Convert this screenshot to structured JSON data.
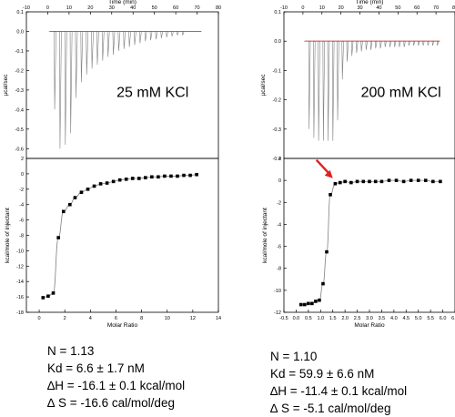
{
  "chart_data": [
    {
      "type": "line",
      "panel": "thermogram",
      "xlabel": "Time (min)",
      "ylabel": "µcal/sec",
      "annotation": "25 mM KCl",
      "xlim": [
        -10,
        80
      ],
      "ylim": [
        -0.65,
        0.1
      ],
      "x_ticks": [
        -10,
        0,
        10,
        20,
        30,
        40,
        50,
        60,
        70,
        80
      ],
      "y_ticks": [
        0.1,
        0.0,
        -0.1,
        -0.2,
        -0.3,
        -0.4,
        -0.5,
        -0.6
      ],
      "baseline_color": "#cc0000",
      "trace_color": "#808080",
      "injection_times": [
        3.0,
        5.5,
        8.0,
        10.5,
        13.0,
        15.5,
        18.0,
        20.5,
        23.0,
        25.5,
        28.0,
        30.5,
        33.0,
        35.5,
        38.0,
        40.5,
        43.0,
        45.5,
        48.0,
        50.5,
        53.0,
        55.5,
        58.0,
        60.5,
        63.0
      ],
      "peak_values": [
        -0.4,
        -0.6,
        -0.58,
        -0.52,
        -0.34,
        -0.26,
        -0.22,
        -0.19,
        -0.17,
        -0.15,
        -0.13,
        -0.12,
        -0.1,
        -0.09,
        -0.08,
        -0.07,
        -0.06,
        -0.05,
        -0.045,
        -0.04,
        -0.035,
        -0.03,
        -0.025,
        -0.02,
        -0.02
      ]
    },
    {
      "type": "scatter",
      "panel": "binding-isotherm",
      "xlabel": "Molar Ratio",
      "ylabel": "kcal/mole of injectant",
      "xlim": [
        -1,
        14
      ],
      "ylim": [
        -18,
        2
      ],
      "x_ticks": [
        0,
        2,
        4,
        6,
        8,
        10,
        12,
        14
      ],
      "y_ticks": [
        2,
        0,
        -2,
        -4,
        -6,
        -8,
        -10,
        -12,
        -14,
        -16,
        -18
      ],
      "marker_color": "#000000",
      "fit_color": "#808080",
      "x": [
        0.3,
        0.7,
        1.1,
        1.5,
        1.9,
        2.4,
        2.8,
        3.3,
        3.8,
        4.3,
        4.8,
        5.3,
        5.8,
        6.3,
        6.8,
        7.3,
        7.8,
        8.3,
        8.8,
        9.3,
        9.8,
        10.3,
        10.8,
        11.3,
        11.8,
        12.3
      ],
      "y": [
        -16.1,
        -15.9,
        -15.5,
        -8.3,
        -4.9,
        -4.0,
        -3.1,
        -2.4,
        -2.0,
        -1.6,
        -1.3,
        -1.2,
        -1.0,
        -0.8,
        -0.7,
        -0.6,
        -0.6,
        -0.5,
        -0.4,
        -0.4,
        -0.3,
        -0.3,
        -0.3,
        -0.2,
        -0.2,
        -0.1
      ]
    },
    {
      "type": "line",
      "panel": "thermogram",
      "xlabel": "Time (min)",
      "ylabel": "µcal/sec",
      "annotation": "200 mM KCl",
      "xlim": [
        -10,
        80
      ],
      "ylim": [
        -0.4,
        0.1
      ],
      "x_ticks": [
        -10,
        0,
        10,
        20,
        30,
        40,
        50,
        60,
        70,
        80
      ],
      "y_ticks": [
        0.1,
        0.0,
        -0.1,
        -0.2,
        -0.3,
        -0.4
      ],
      "baseline_color": "#cc0000",
      "trace_color": "#808080",
      "injection_times": [
        3.0,
        5.5,
        8.0,
        10.5,
        13.0,
        15.5,
        18.0,
        20.5,
        23.0,
        25.5,
        28.0,
        30.5,
        33.0,
        35.5,
        38.0,
        40.5,
        43.0,
        45.5,
        48.0,
        50.5,
        53.0,
        55.5,
        58.0,
        60.5,
        63.0,
        65.5,
        68.0,
        70.5
      ],
      "peak_values": [
        -0.3,
        -0.33,
        -0.34,
        -0.34,
        -0.34,
        -0.34,
        -0.27,
        -0.13,
        -0.07,
        -0.05,
        -0.04,
        -0.035,
        -0.03,
        -0.03,
        -0.025,
        -0.025,
        -0.02,
        -0.02,
        -0.02,
        -0.02,
        -0.02,
        -0.015,
        -0.015,
        -0.015,
        -0.015,
        -0.015,
        -0.015,
        -0.015
      ]
    },
    {
      "type": "scatter",
      "panel": "binding-isotherm",
      "xlabel": "Molar Ratio",
      "ylabel": "kcal/mole of injectant",
      "xlim": [
        -0.5,
        6.5
      ],
      "ylim": [
        -12,
        2
      ],
      "x_ticks": [
        -0.5,
        0.0,
        0.5,
        1.0,
        1.5,
        2.0,
        2.5,
        3.0,
        3.5,
        4.0,
        4.5,
        5.0,
        5.5,
        6.0,
        6.5
      ],
      "y_ticks": [
        2,
        0,
        -2,
        -4,
        -6,
        -8,
        -10,
        -12
      ],
      "marker_color": "#000000",
      "fit_color": "#808080",
      "x": [
        0.2,
        0.35,
        0.5,
        0.65,
        0.8,
        0.95,
        1.1,
        1.25,
        1.4,
        1.6,
        1.8,
        2.0,
        2.25,
        2.5,
        2.75,
        3.0,
        3.25,
        3.5,
        3.8,
        4.1,
        4.4,
        4.7,
        5.0,
        5.3,
        5.6,
        5.9
      ],
      "y": [
        -11.3,
        -11.3,
        -11.2,
        -11.2,
        -11.0,
        -10.9,
        -9.4,
        -6.5,
        -1.3,
        -0.3,
        -0.2,
        -0.1,
        -0.2,
        -0.1,
        -0.1,
        -0.1,
        -0.1,
        -0.1,
        0.0,
        0.0,
        -0.1,
        0.0,
        0.0,
        0.0,
        -0.1,
        -0.1
      ]
    }
  ],
  "stats": {
    "left": {
      "n": "N = 1.13",
      "kd": "Kd = 6.6 ± 1.7 nM",
      "dh": "∆H = -16.1 ± 0.1 kcal/mol",
      "ds": "∆ S = -16.6 cal/mol/deg"
    },
    "right": {
      "n": "N = 1.10",
      "kd": "Kd = 59.9 ± 6.6 nM",
      "dh": "∆H = -11.4 ± 0.1 kcal/mol",
      "ds": "∆ S = -5.1 cal/mol/deg"
    }
  },
  "colors": {
    "arrow": "#e02020",
    "axis": "#000000",
    "text": "#000000"
  }
}
